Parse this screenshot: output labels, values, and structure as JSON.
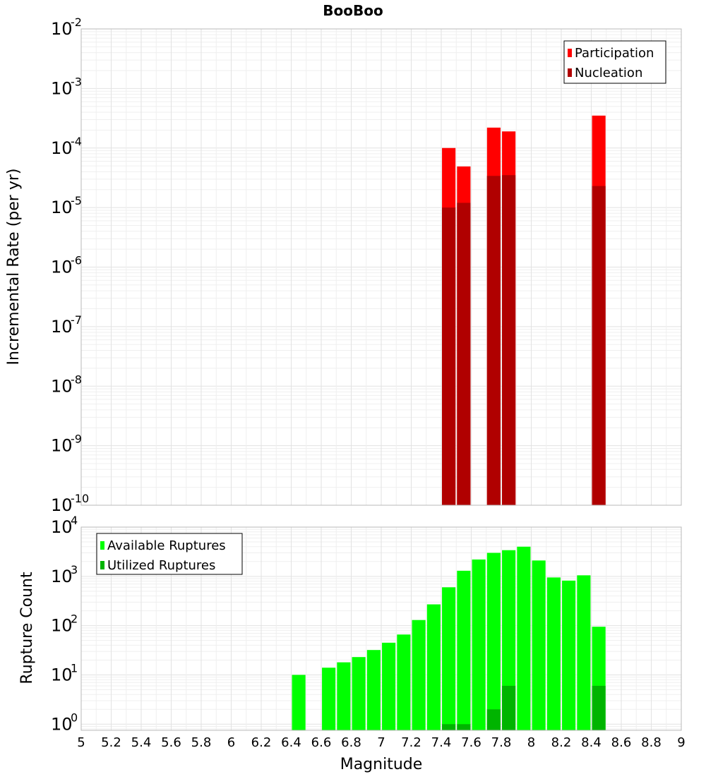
{
  "chart_data": [
    {
      "type": "bar",
      "title": "BooBoo",
      "xlabel": "",
      "ylabel": "Incremental Rate (per yr)",
      "yscale": "log",
      "ylim": [
        1e-10,
        0.01
      ],
      "xlim": [
        5,
        9
      ],
      "ytick_exponents": [
        "-10",
        "-9",
        "-8",
        "-7",
        "-6",
        "-5",
        "-4",
        "-3",
        "-2"
      ],
      "ytick_base": "10",
      "grid": true,
      "legend_position": "top-right",
      "bar_width": 0.09,
      "series": [
        {
          "name": "Participation",
          "color": "#ff0000",
          "points": [
            {
              "x": 7.45,
              "y": 0.0001
            },
            {
              "x": 7.55,
              "y": 4.9e-05
            },
            {
              "x": 7.75,
              "y": 0.00022
            },
            {
              "x": 7.85,
              "y": 0.00019
            },
            {
              "x": 8.45,
              "y": 0.00035
            }
          ]
        },
        {
          "name": "Nucleation",
          "color": "#b00000",
          "points": [
            {
              "x": 7.45,
              "y": 1e-05
            },
            {
              "x": 7.55,
              "y": 1.2e-05
            },
            {
              "x": 7.75,
              "y": 3.4e-05
            },
            {
              "x": 7.85,
              "y": 3.5e-05
            },
            {
              "x": 8.45,
              "y": 2.3e-05
            }
          ]
        }
      ]
    },
    {
      "type": "bar",
      "title": "",
      "xlabel": "Magnitude",
      "ylabel": "Rupture Count",
      "yscale": "log",
      "ylim": [
        0.75,
        10000
      ],
      "xlim": [
        5,
        9
      ],
      "ytick_exponents": [
        "0",
        "1",
        "2",
        "3",
        "4"
      ],
      "ytick_base": "10",
      "xticks": [
        "5",
        "5.2",
        "5.4",
        "5.6",
        "5.8",
        "6",
        "6.2",
        "6.4",
        "6.6",
        "6.8",
        "7",
        "7.2",
        "7.4",
        "7.6",
        "7.8",
        "8",
        "8.2",
        "8.4",
        "8.6",
        "8.8",
        "9"
      ],
      "grid": true,
      "legend_position": "top-left",
      "bar_width": 0.09,
      "series": [
        {
          "name": "Available Ruptures",
          "color": "#00ff00",
          "points": [
            {
              "x": 6.45,
              "y": 10
            },
            {
              "x": 6.65,
              "y": 14
            },
            {
              "x": 6.75,
              "y": 18
            },
            {
              "x": 6.85,
              "y": 23
            },
            {
              "x": 6.95,
              "y": 32
            },
            {
              "x": 7.05,
              "y": 45
            },
            {
              "x": 7.15,
              "y": 66
            },
            {
              "x": 7.25,
              "y": 130
            },
            {
              "x": 7.35,
              "y": 270
            },
            {
              "x": 7.45,
              "y": 600
            },
            {
              "x": 7.55,
              "y": 1300
            },
            {
              "x": 7.65,
              "y": 2200
            },
            {
              "x": 7.75,
              "y": 3000
            },
            {
              "x": 7.85,
              "y": 3400
            },
            {
              "x": 7.95,
              "y": 4000
            },
            {
              "x": 8.05,
              "y": 2100
            },
            {
              "x": 8.15,
              "y": 950
            },
            {
              "x": 8.25,
              "y": 820
            },
            {
              "x": 8.35,
              "y": 1050
            },
            {
              "x": 8.45,
              "y": 95
            }
          ]
        },
        {
          "name": "Utilized Ruptures",
          "color": "#00b400",
          "points": [
            {
              "x": 7.45,
              "y": 1
            },
            {
              "x": 7.55,
              "y": 1
            },
            {
              "x": 7.75,
              "y": 2
            },
            {
              "x": 7.85,
              "y": 6
            },
            {
              "x": 8.45,
              "y": 6
            }
          ]
        }
      ]
    }
  ]
}
